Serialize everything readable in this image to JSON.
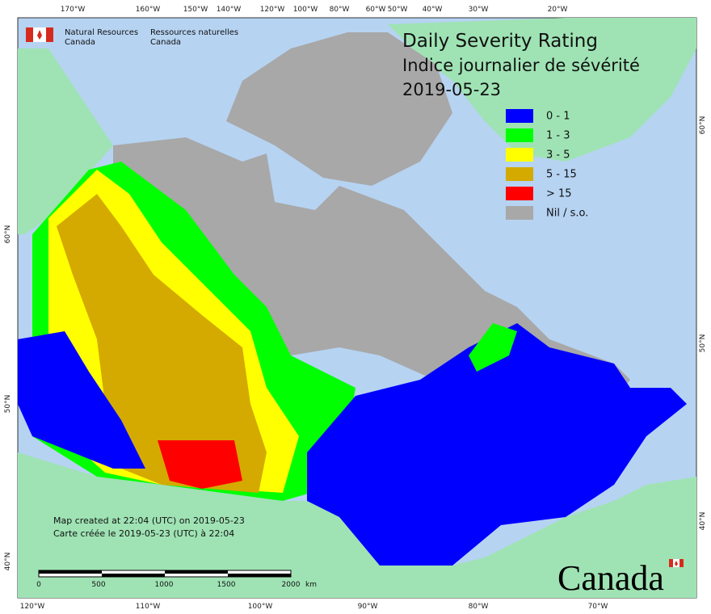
{
  "header": {
    "agency_en": [
      "Natural Resources",
      "Canada"
    ],
    "agency_fr": [
      "Ressources naturelles",
      "Canada"
    ]
  },
  "title": {
    "line1": "Daily Severity Rating",
    "line2": "Indice journalier de sévérité",
    "date": "2019-05-23"
  },
  "legend": [
    {
      "label": "0 - 1",
      "color": "#0000ff"
    },
    {
      "label": "1 - 3",
      "color": "#00ff00"
    },
    {
      "label": "3 - 5",
      "color": "#ffff00"
    },
    {
      "label": "5 - 15",
      "color": "#d4aa00"
    },
    {
      "label": "> 15",
      "color": "#ff0000"
    },
    {
      "label": "Nil / s.o.",
      "color": "#a8a8a8"
    }
  ],
  "credits": [
    "Map created at 22:04 (UTC) on 2019-05-23",
    "Carte créée le 2019-05-23 (UTC) à 22:04"
  ],
  "scale_bar": {
    "labels": [
      "0",
      "500",
      "1000",
      "1500",
      "2000"
    ],
    "unit": "km"
  },
  "graticule": {
    "top": [
      "170°W",
      "160°W",
      "150°W",
      "140°W",
      "120°W",
      "100°W",
      "80°W",
      "60°W",
      "50°W",
      "40°W",
      "30°W",
      "20°W"
    ],
    "bottom": [
      "120°W",
      "110°W",
      "100°W",
      "90°W",
      "80°W",
      "70°W"
    ],
    "left": [
      "60°N",
      "50°N",
      "40°N"
    ],
    "right": [
      "60°N",
      "50°N",
      "40°N"
    ]
  },
  "wordmark": "Canada"
}
